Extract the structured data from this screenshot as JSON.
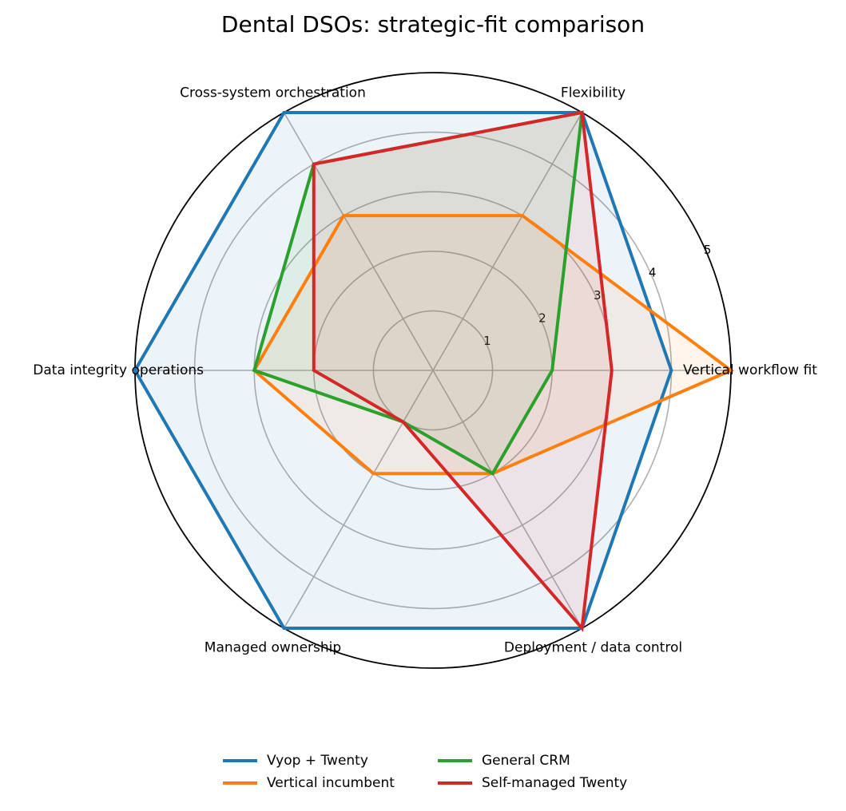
{
  "chart_data": {
    "type": "radar",
    "title": "Dental DSOs: strategic-fit comparison",
    "axes": [
      "Vertical workflow fit",
      "Flexibility",
      "Cross-system orchestration",
      "Data integrity operations",
      "Managed ownership",
      "Deployment / data control"
    ],
    "r_ticks": [
      1,
      2,
      3,
      4,
      5
    ],
    "rlim": [
      0,
      5
    ],
    "grid": true,
    "legend_position": "bottom-center",
    "series": [
      {
        "name": "Vyop + Twenty",
        "color": "#1f77b4",
        "values": [
          4,
          5,
          5,
          5,
          5,
          5
        ]
      },
      {
        "name": "Vertical incumbent",
        "color": "#ff7f0e",
        "values": [
          5,
          3,
          3,
          3,
          2,
          2
        ]
      },
      {
        "name": "General CRM",
        "color": "#2ca02c",
        "values": [
          2,
          5,
          4,
          3,
          1,
          2
        ]
      },
      {
        "name": "Self-managed Twenty",
        "color": "#d62728",
        "values": [
          3,
          5,
          4,
          2,
          1,
          5
        ]
      }
    ]
  }
}
